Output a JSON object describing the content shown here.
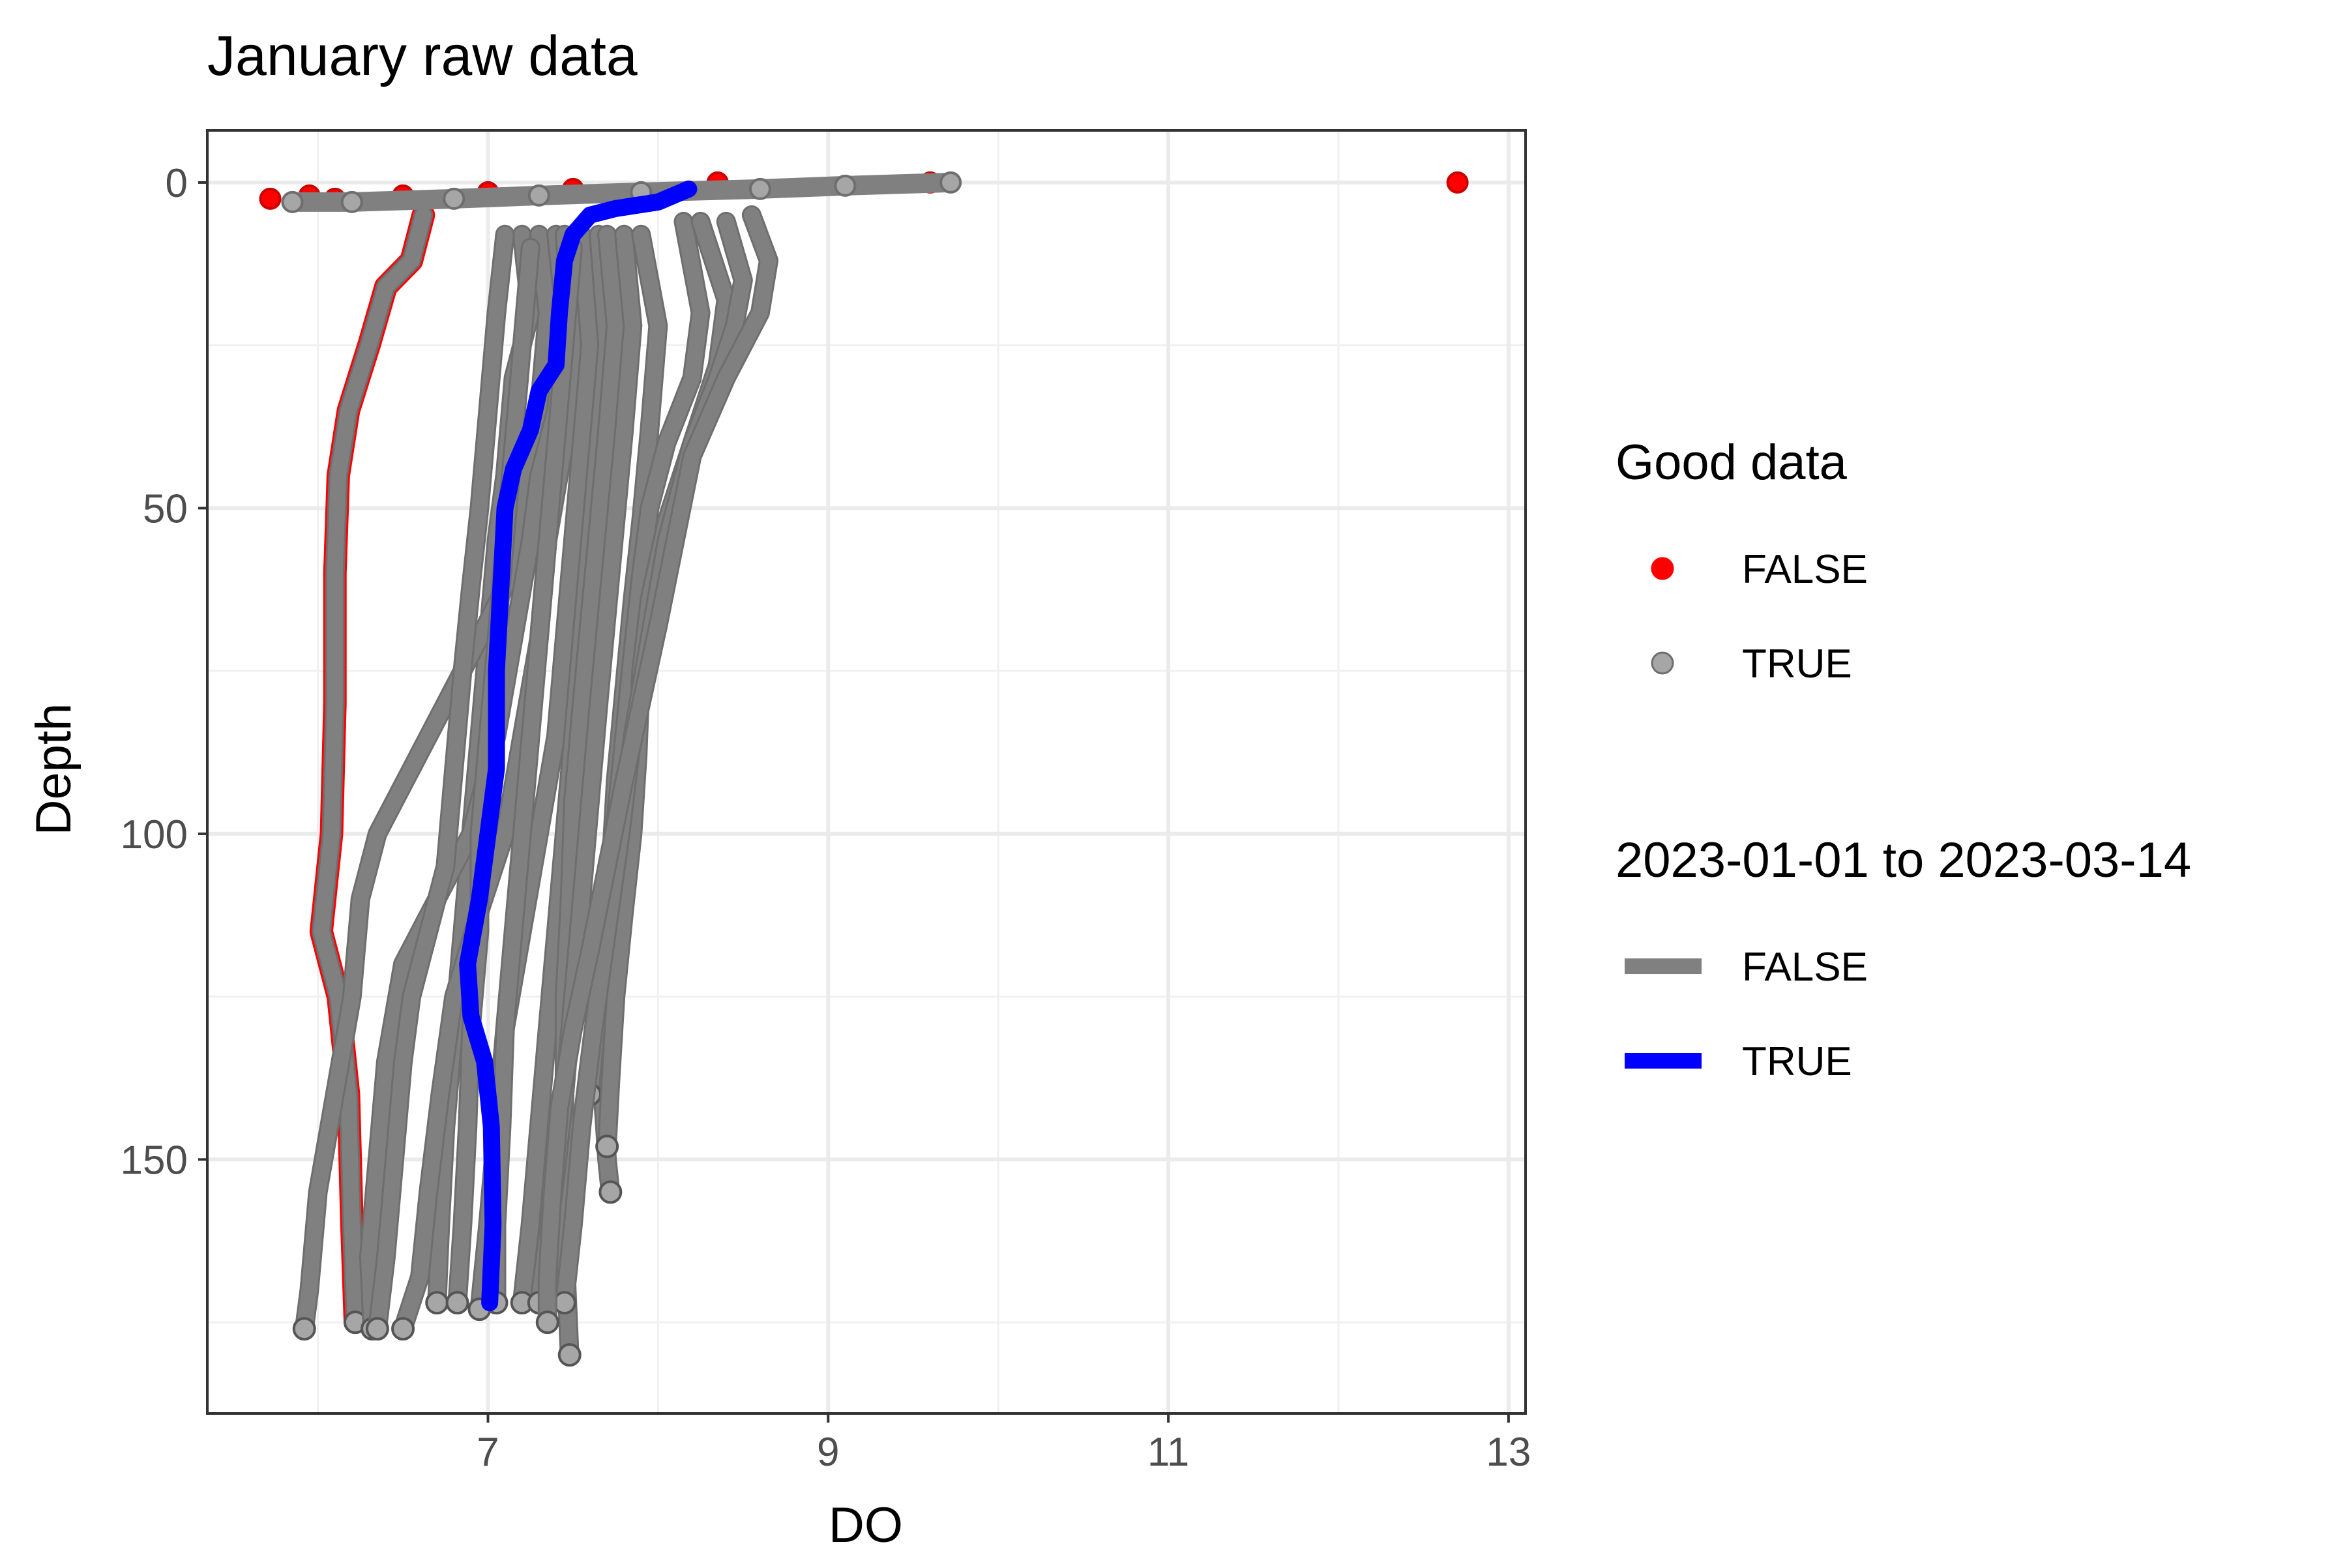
{
  "chart_data": {
    "type": "line",
    "title": "January raw data",
    "xlabel": "DO",
    "ylabel": "Depth",
    "xlim": [
      5.35,
      13.1
    ],
    "ylim": [
      -8,
      189
    ],
    "y_reversed": true,
    "x_ticks": [
      7,
      9,
      11,
      13
    ],
    "y_ticks": [
      0,
      50,
      100,
      150
    ],
    "grid": true,
    "legend_position": "right",
    "legends": [
      {
        "title": "Good data",
        "entries": [
          {
            "label": "FALSE",
            "color": "#FF0000",
            "kind": "point"
          },
          {
            "label": "TRUE",
            "color": "#A6A6A6",
            "kind": "point"
          }
        ]
      },
      {
        "title": "2023-01-01 to 2023-03-14",
        "entries": [
          {
            "label": "FALSE",
            "color": "#808080",
            "kind": "line"
          },
          {
            "label": "TRUE",
            "color": "#0000FF",
            "kind": "line"
          }
        ]
      }
    ],
    "colors": {
      "good_false": "#FF0000",
      "good_true": "#A6A6A6",
      "range_false": "#808080",
      "range_true": "#0000FF"
    },
    "series": [
      {
        "group": "range_false",
        "good": false,
        "points": [
          [
            6.62,
            5
          ],
          [
            6.55,
            12
          ],
          [
            6.4,
            16
          ],
          [
            6.3,
            25
          ],
          [
            6.18,
            35
          ],
          [
            6.12,
            45
          ],
          [
            6.1,
            60
          ],
          [
            6.1,
            80
          ],
          [
            6.08,
            100
          ],
          [
            6.02,
            115
          ],
          [
            6.12,
            125
          ],
          [
            6.18,
            140
          ],
          [
            6.2,
            160
          ],
          [
            6.22,
            175
          ]
        ]
      },
      {
        "group": "range_false",
        "good": true,
        "points": [
          [
            7.2,
            8
          ],
          [
            7.25,
            20
          ],
          [
            7.15,
            30
          ],
          [
            7.1,
            45
          ],
          [
            7.05,
            55
          ],
          [
            7.0,
            70
          ],
          [
            6.95,
            85
          ],
          [
            6.9,
            100
          ],
          [
            6.85,
            115
          ],
          [
            6.8,
            130
          ],
          [
            6.75,
            145
          ],
          [
            6.72,
            160
          ],
          [
            6.7,
            172
          ]
        ]
      },
      {
        "group": "range_false",
        "good": true,
        "points": [
          [
            7.3,
            8
          ],
          [
            7.35,
            20
          ],
          [
            7.3,
            35
          ],
          [
            7.2,
            50
          ],
          [
            7.1,
            62
          ],
          [
            6.95,
            70
          ],
          [
            6.75,
            80
          ],
          [
            6.55,
            90
          ],
          [
            6.35,
            100
          ],
          [
            6.25,
            110
          ],
          [
            6.2,
            125
          ],
          [
            6.1,
            140
          ],
          [
            6.0,
            155
          ],
          [
            5.95,
            170
          ],
          [
            5.92,
            176
          ]
        ]
      },
      {
        "group": "range_false",
        "good": true,
        "points": [
          [
            7.4,
            8
          ],
          [
            7.45,
            20
          ],
          [
            7.4,
            35
          ],
          [
            7.3,
            45
          ],
          [
            7.25,
            55
          ],
          [
            7.15,
            70
          ],
          [
            7.05,
            85
          ],
          [
            6.9,
            100
          ],
          [
            6.7,
            110
          ],
          [
            6.5,
            120
          ],
          [
            6.4,
            135
          ],
          [
            6.35,
            150
          ],
          [
            6.3,
            165
          ],
          [
            6.32,
            176
          ]
        ]
      },
      {
        "group": "range_false",
        "good": true,
        "points": [
          [
            7.45,
            8
          ],
          [
            7.5,
            25
          ],
          [
            7.45,
            40
          ],
          [
            7.35,
            55
          ],
          [
            7.3,
            70
          ],
          [
            7.2,
            85
          ],
          [
            7.1,
            100
          ],
          [
            6.95,
            112
          ],
          [
            6.8,
            125
          ],
          [
            6.72,
            140
          ],
          [
            6.65,
            155
          ],
          [
            6.6,
            168
          ],
          [
            6.5,
            176
          ]
        ]
      },
      {
        "group": "range_false",
        "good": true,
        "points": [
          [
            7.55,
            8
          ],
          [
            7.6,
            25
          ],
          [
            7.55,
            40
          ],
          [
            7.5,
            55
          ],
          [
            7.45,
            70
          ],
          [
            7.4,
            85
          ],
          [
            7.3,
            100
          ],
          [
            7.2,
            115
          ],
          [
            7.1,
            130
          ],
          [
            7.05,
            145
          ],
          [
            7.0,
            160
          ],
          [
            6.95,
            173
          ]
        ]
      },
      {
        "group": "range_false",
        "good": true,
        "points": [
          [
            7.65,
            8
          ],
          [
            7.7,
            25
          ],
          [
            7.65,
            40
          ],
          [
            7.6,
            55
          ],
          [
            7.55,
            70
          ],
          [
            7.5,
            85
          ],
          [
            7.45,
            100
          ],
          [
            7.4,
            115
          ],
          [
            7.35,
            130
          ],
          [
            7.3,
            145
          ],
          [
            7.25,
            160
          ],
          [
            7.2,
            172
          ]
        ]
      },
      {
        "group": "range_false",
        "good": true,
        "points": [
          [
            7.7,
            8
          ],
          [
            7.75,
            22
          ],
          [
            7.7,
            38
          ],
          [
            7.65,
            52
          ],
          [
            7.6,
            66
          ],
          [
            7.55,
            80
          ],
          [
            7.5,
            95
          ],
          [
            7.48,
            110
          ],
          [
            7.45,
            125
          ],
          [
            7.45,
            140
          ],
          [
            7.45,
            155
          ],
          [
            7.46,
            168
          ],
          [
            7.48,
            180
          ]
        ]
      },
      {
        "group": "range_false",
        "good": true,
        "points": [
          [
            7.8,
            8
          ],
          [
            7.85,
            22
          ],
          [
            7.8,
            38
          ],
          [
            7.75,
            52
          ],
          [
            7.7,
            66
          ],
          [
            7.65,
            80
          ],
          [
            7.6,
            95
          ],
          [
            7.55,
            110
          ],
          [
            7.5,
            125
          ],
          [
            7.45,
            140
          ],
          [
            7.4,
            152
          ],
          [
            7.35,
            162
          ],
          [
            7.3,
            172
          ]
        ]
      },
      {
        "group": "range_false",
        "good": true,
        "points": [
          [
            7.9,
            8
          ],
          [
            8.0,
            22
          ],
          [
            7.95,
            38
          ],
          [
            7.9,
            52
          ],
          [
            7.85,
            64
          ],
          [
            7.8,
            78
          ],
          [
            7.75,
            92
          ],
          [
            7.72,
            106
          ],
          [
            7.7,
            120
          ],
          [
            7.68,
            132
          ],
          [
            7.68,
            142
          ],
          [
            7.7,
            150
          ],
          [
            7.72,
            155
          ]
        ]
      },
      {
        "group": "range_false",
        "good": true,
        "points": [
          [
            8.15,
            6
          ],
          [
            8.25,
            20
          ],
          [
            8.2,
            30
          ],
          [
            8.05,
            40
          ],
          [
            7.95,
            50
          ],
          [
            7.9,
            60
          ],
          [
            7.85,
            72
          ],
          [
            7.8,
            85
          ],
          [
            7.75,
            98
          ],
          [
            7.7,
            110
          ],
          [
            7.65,
            125
          ],
          [
            7.6,
            140
          ]
        ]
      },
      {
        "group": "range_false",
        "good": true,
        "points": [
          [
            8.25,
            6
          ],
          [
            8.4,
            18
          ],
          [
            8.35,
            28
          ],
          [
            8.2,
            40
          ],
          [
            8.05,
            52
          ],
          [
            7.95,
            64
          ],
          [
            7.9,
            75
          ],
          [
            7.88,
            88
          ],
          [
            7.85,
            100
          ],
          [
            7.8,
            112
          ],
          [
            7.75,
            125
          ],
          [
            7.72,
            138
          ],
          [
            7.7,
            148
          ]
        ]
      },
      {
        "group": "range_false",
        "good": true,
        "points": [
          [
            8.4,
            6
          ],
          [
            8.5,
            15
          ],
          [
            8.45,
            22
          ],
          [
            8.35,
            30
          ],
          [
            8.2,
            40
          ],
          [
            8.05,
            55
          ],
          [
            7.95,
            70
          ],
          [
            7.85,
            85
          ],
          [
            7.78,
            100
          ],
          [
            7.7,
            115
          ],
          [
            7.62,
            130
          ],
          [
            7.55,
            145
          ],
          [
            7.5,
            160
          ],
          [
            7.45,
            172
          ]
        ]
      },
      {
        "group": "range_false",
        "good": true,
        "points": [
          [
            8.55,
            5
          ],
          [
            8.65,
            12
          ],
          [
            8.6,
            20
          ],
          [
            8.4,
            30
          ],
          [
            8.2,
            42
          ],
          [
            8.1,
            55
          ],
          [
            8.0,
            68
          ],
          [
            7.9,
            80
          ],
          [
            7.8,
            92
          ],
          [
            7.7,
            105
          ],
          [
            7.6,
            118
          ],
          [
            7.5,
            130
          ],
          [
            7.42,
            142
          ],
          [
            7.38,
            155
          ],
          [
            7.35,
            168
          ],
          [
            7.35,
            175
          ]
        ]
      },
      {
        "group": "range_false",
        "good": true,
        "points": [
          [
            7.1,
            8
          ],
          [
            7.05,
            20
          ],
          [
            7.0,
            35
          ],
          [
            6.95,
            50
          ],
          [
            6.9,
            62
          ],
          [
            6.85,
            75
          ],
          [
            6.8,
            90
          ],
          [
            6.75,
            105
          ],
          [
            6.65,
            115
          ],
          [
            6.55,
            125
          ],
          [
            6.5,
            135
          ],
          [
            6.45,
            150
          ],
          [
            6.4,
            165
          ],
          [
            6.35,
            176
          ]
        ]
      },
      {
        "group": "range_false",
        "good": true,
        "points": [
          [
            7.25,
            10
          ],
          [
            7.2,
            25
          ],
          [
            7.15,
            40
          ],
          [
            7.1,
            55
          ],
          [
            7.05,
            70
          ],
          [
            7.0,
            85
          ],
          [
            6.95,
            100
          ],
          [
            6.95,
            115
          ],
          [
            6.9,
            130
          ],
          [
            6.88,
            145
          ],
          [
            6.85,
            160
          ],
          [
            6.82,
            172
          ]
        ]
      },
      {
        "group": "range_false",
        "good": true,
        "points": [
          [
            7.5,
            10
          ],
          [
            7.45,
            25
          ],
          [
            7.4,
            40
          ],
          [
            7.35,
            55
          ],
          [
            7.3,
            70
          ],
          [
            7.25,
            85
          ],
          [
            7.2,
            100
          ],
          [
            7.15,
            115
          ],
          [
            7.1,
            130
          ],
          [
            7.08,
            145
          ],
          [
            7.05,
            160
          ],
          [
            7.05,
            172
          ]
        ]
      },
      {
        "group": "range_true",
        "good": true,
        "points": [
          [
            8.18,
            1
          ],
          [
            8.0,
            3
          ],
          [
            7.75,
            4
          ],
          [
            7.6,
            5
          ],
          [
            7.5,
            8
          ],
          [
            7.45,
            12
          ],
          [
            7.42,
            20
          ],
          [
            7.4,
            28
          ],
          [
            7.3,
            32
          ],
          [
            7.25,
            38
          ],
          [
            7.15,
            44
          ],
          [
            7.1,
            50
          ],
          [
            7.08,
            60
          ],
          [
            7.05,
            75
          ],
          [
            7.05,
            90
          ],
          [
            7.0,
            100
          ],
          [
            6.95,
            110
          ],
          [
            6.88,
            120
          ],
          [
            6.9,
            128
          ],
          [
            6.98,
            135
          ],
          [
            7.02,
            145
          ],
          [
            7.03,
            160
          ],
          [
            7.01,
            172
          ]
        ]
      }
    ],
    "surface_points": [
      {
        "good": false,
        "points": [
          [
            5.72,
            2.5
          ],
          [
            5.95,
            2
          ],
          [
            6.1,
            2.5
          ],
          [
            6.5,
            2
          ],
          [
            7.0,
            1.5
          ],
          [
            7.5,
            1
          ],
          [
            8.35,
            0
          ],
          [
            9.6,
            0
          ],
          [
            12.7,
            0
          ]
        ]
      },
      {
        "good": true,
        "points": [
          [
            5.85,
            3
          ],
          [
            6.2,
            3
          ],
          [
            6.8,
            2.5
          ],
          [
            7.3,
            2
          ],
          [
            7.9,
            1.5
          ],
          [
            8.6,
            1
          ],
          [
            9.1,
            0.5
          ],
          [
            9.72,
            0
          ]
        ]
      }
    ]
  }
}
